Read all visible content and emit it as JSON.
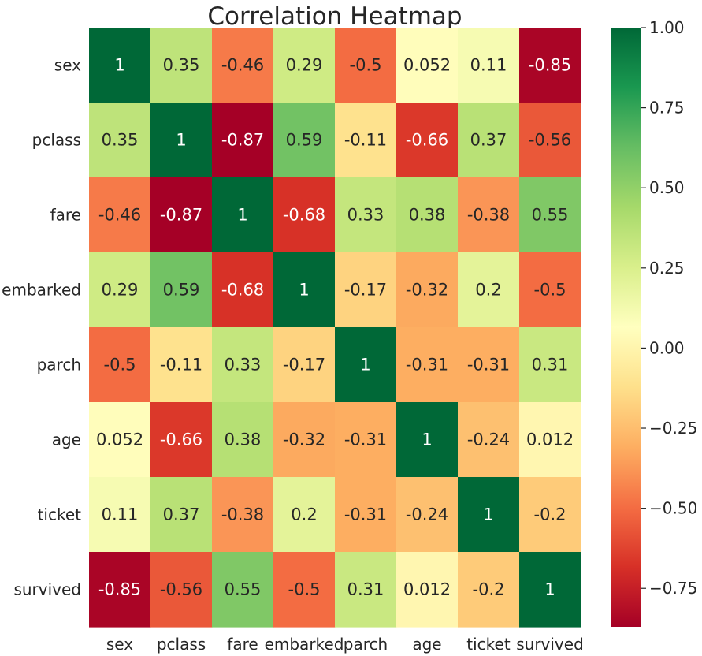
{
  "chart_data": {
    "type": "heatmap",
    "title": "Correlation Heatmap",
    "xlabel": "",
    "ylabel": "",
    "x_categories": [
      "sex",
      "pclass",
      "fare",
      "embarked",
      "parch",
      "age",
      "ticket",
      "survived"
    ],
    "y_categories": [
      "sex",
      "pclass",
      "fare",
      "embarked",
      "parch",
      "age",
      "ticket",
      "survived"
    ],
    "values": [
      [
        1,
        0.35,
        -0.46,
        0.29,
        -0.5,
        0.052,
        0.11,
        -0.85
      ],
      [
        0.35,
        1,
        -0.87,
        0.59,
        -0.11,
        -0.66,
        0.37,
        -0.56
      ],
      [
        -0.46,
        -0.87,
        1,
        -0.68,
        0.33,
        0.38,
        -0.38,
        0.55
      ],
      [
        0.29,
        0.59,
        -0.68,
        1,
        -0.17,
        -0.32,
        0.2,
        -0.5
      ],
      [
        -0.5,
        -0.11,
        0.33,
        -0.17,
        1,
        -0.31,
        -0.31,
        0.31
      ],
      [
        0.052,
        -0.66,
        0.38,
        -0.32,
        -0.31,
        1,
        -0.24,
        0.012
      ],
      [
        0.11,
        0.37,
        -0.38,
        0.2,
        -0.31,
        -0.24,
        1,
        -0.2
      ],
      [
        -0.85,
        -0.56,
        0.55,
        -0.5,
        0.31,
        0.012,
        -0.2,
        1
      ]
    ],
    "annotations": [
      [
        "1",
        "0.35",
        "-0.46",
        "0.29",
        "-0.5",
        "0.052",
        "0.11",
        "-0.85"
      ],
      [
        "0.35",
        "1",
        "-0.87",
        "0.59",
        "-0.11",
        "-0.66",
        "0.37",
        "-0.56"
      ],
      [
        "-0.46",
        "-0.87",
        "1",
        "-0.68",
        "0.33",
        "0.38",
        "-0.38",
        "0.55"
      ],
      [
        "0.29",
        "0.59",
        "-0.68",
        "1",
        "-0.17",
        "-0.32",
        "0.2",
        "-0.5"
      ],
      [
        "-0.5",
        "-0.11",
        "0.33",
        "-0.17",
        "1",
        "-0.31",
        "-0.31",
        "0.31"
      ],
      [
        "0.052",
        "-0.66",
        "0.38",
        "-0.32",
        "-0.31",
        "1",
        "-0.24",
        "0.012"
      ],
      [
        "0.11",
        "0.37",
        "-0.38",
        "0.2",
        "-0.31",
        "-0.24",
        "1",
        "-0.2"
      ],
      [
        "-0.85",
        "-0.56",
        "0.55",
        "-0.5",
        "0.31",
        "0.012",
        "-0.2",
        "1"
      ]
    ],
    "colormap": "RdYlGn",
    "color_range": [
      -0.87,
      1
    ],
    "colorbar_ticks": [
      1.0,
      0.75,
      0.5,
      0.25,
      0.0,
      -0.25,
      -0.5,
      -0.75
    ],
    "colorbar_tick_labels": [
      "1.00",
      "0.75",
      "0.50",
      "0.25",
      "0.00",
      "−0.25",
      "−0.50",
      "−0.75"
    ],
    "grid": false,
    "legend": "colorbar-right"
  }
}
